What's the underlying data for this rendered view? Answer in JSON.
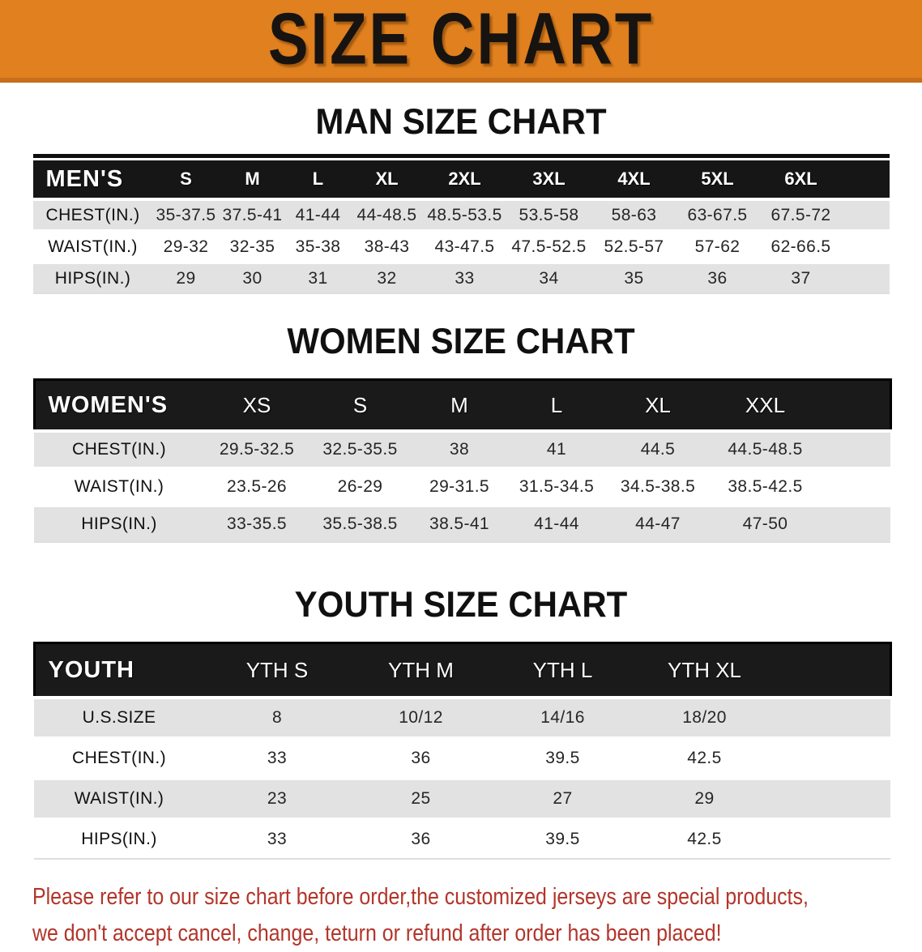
{
  "banner": {
    "title": "SIZE CHART"
  },
  "colors": {
    "banner_bg": "#E0801F",
    "banner_edge": "#C76F1C",
    "header_band": "#161616",
    "row_stripe": "#E2E2E2",
    "footer_text": "#B2352A"
  },
  "sections": {
    "men": {
      "heading": "MAN SIZE CHART",
      "table": {
        "corner": "MEN'S",
        "sizes": [
          "S",
          "M",
          "L",
          "XL",
          "2XL",
          "3XL",
          "4XL",
          "5XL",
          "6XL"
        ],
        "rows": [
          {
            "label": "CHEST(IN.)",
            "values": [
              "35-37.5",
              "37.5-41",
              "41-44",
              "44-48.5",
              "48.5-53.5",
              "53.5-58",
              "58-63",
              "63-67.5",
              "67.5-72"
            ]
          },
          {
            "label": "WAIST(IN.)",
            "values": [
              "29-32",
              "32-35",
              "35-38",
              "38-43",
              "43-47.5",
              "47.5-52.5",
              "52.5-57",
              "57-62",
              "62-66.5"
            ]
          },
          {
            "label": "HIPS(IN.)",
            "values": [
              "29",
              "30",
              "31",
              "32",
              "33",
              "34",
              "35",
              "36",
              "37"
            ]
          }
        ]
      }
    },
    "women": {
      "heading": "WOMEN SIZE CHART",
      "table": {
        "corner": "WOMEN'S",
        "sizes": [
          "XS",
          "S",
          "M",
          "L",
          "XL",
          "XXL"
        ],
        "rows": [
          {
            "label": "CHEST(IN.)",
            "values": [
              "29.5-32.5",
              "32.5-35.5",
              "38",
              "41",
              "44.5",
              "44.5-48.5"
            ]
          },
          {
            "label": "WAIST(IN.)",
            "values": [
              "23.5-26",
              "26-29",
              "29-31.5",
              "31.5-34.5",
              "34.5-38.5",
              "38.5-42.5"
            ]
          },
          {
            "label": "HIPS(IN.)",
            "values": [
              "33-35.5",
              "35.5-38.5",
              "38.5-41",
              "41-44",
              "44-47",
              "47-50"
            ]
          }
        ]
      }
    },
    "youth": {
      "heading": "YOUTH SIZE CHART",
      "table": {
        "corner": "YOUTH",
        "sizes": [
          "YTH S",
          "YTH M",
          "YTH L",
          "YTH XL"
        ],
        "rows": [
          {
            "label": "U.S.SIZE",
            "values": [
              "8",
              "10/12",
              "14/16",
              "18/20"
            ]
          },
          {
            "label": "CHEST(IN.)",
            "values": [
              "33",
              "36",
              "39.5",
              "42.5"
            ]
          },
          {
            "label": "WAIST(IN.)",
            "values": [
              "23",
              "25",
              "27",
              "29"
            ]
          },
          {
            "label": "HIPS(IN.)",
            "values": [
              "33",
              "36",
              "39.5",
              "42.5"
            ]
          }
        ]
      }
    }
  },
  "footer": {
    "line1": "Please refer to our size chart before order,the customized jerseys are special products,",
    "line2": "we don't accept cancel, change, teturn or refund after order has been placed!"
  }
}
